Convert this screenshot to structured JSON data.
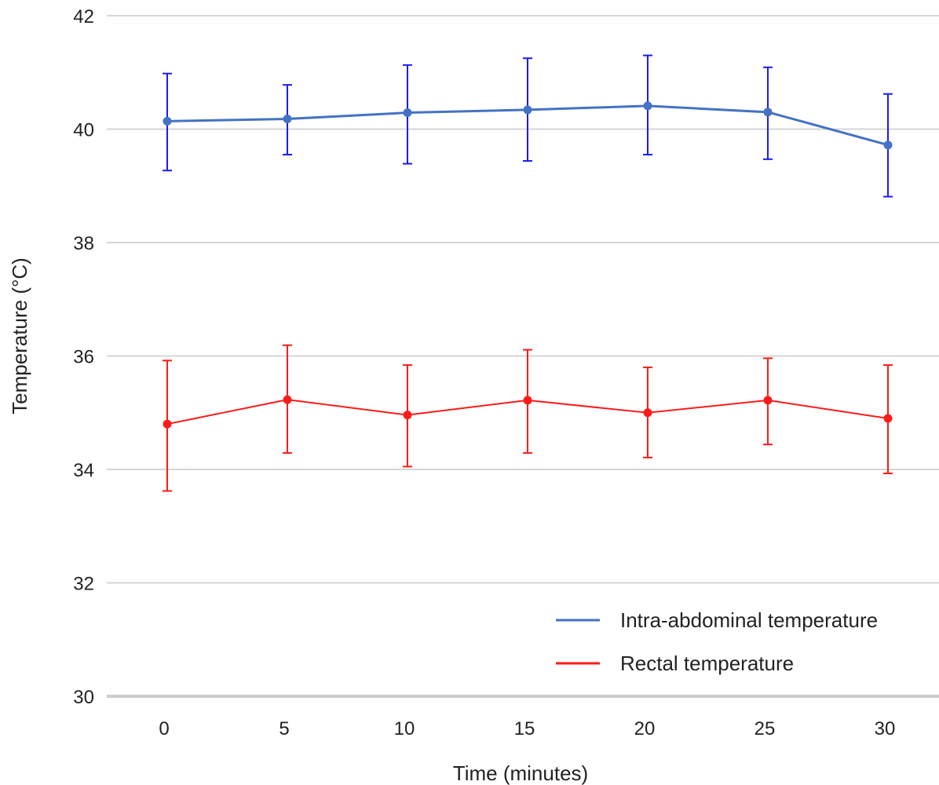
{
  "chart_data": {
    "type": "line",
    "xlabel": "Time (minutes)",
    "ylabel": "Temperature (°C)",
    "x": [
      0,
      5,
      10,
      15,
      20,
      25,
      30
    ],
    "x_tick_labels": [
      "0",
      "5",
      "10",
      "15",
      "20",
      "25",
      "30"
    ],
    "ylim": [
      30,
      42
    ],
    "y_ticks": [
      30,
      32,
      34,
      36,
      38,
      40,
      42
    ],
    "y_tick_labels": [
      "30",
      "32",
      "34",
      "36",
      "38",
      "40",
      "42"
    ],
    "grid": "horizontal",
    "legend_position": "bottom-right",
    "series": [
      {
        "name": "Intra-abdominal temperature",
        "line_color": "#4472c4",
        "errorbar_color": "#1a1aff",
        "values": [
          40.14,
          40.18,
          40.29,
          40.34,
          40.41,
          40.3,
          39.72
        ],
        "error_low": [
          39.27,
          39.55,
          39.39,
          39.44,
          39.55,
          39.47,
          38.81
        ],
        "error_high": [
          40.98,
          40.78,
          41.13,
          41.25,
          41.3,
          41.09,
          40.62
        ]
      },
      {
        "name": "Rectal temperature",
        "line_color": "#ff1a1a",
        "errorbar_color": "#ff1a1a",
        "values": [
          34.8,
          35.23,
          34.96,
          35.22,
          35.0,
          35.22,
          34.9
        ],
        "error_low": [
          33.62,
          34.29,
          34.05,
          34.29,
          34.21,
          34.44,
          33.93
        ],
        "error_high": [
          35.92,
          36.19,
          35.84,
          36.11,
          35.8,
          35.96,
          35.84
        ]
      }
    ]
  }
}
